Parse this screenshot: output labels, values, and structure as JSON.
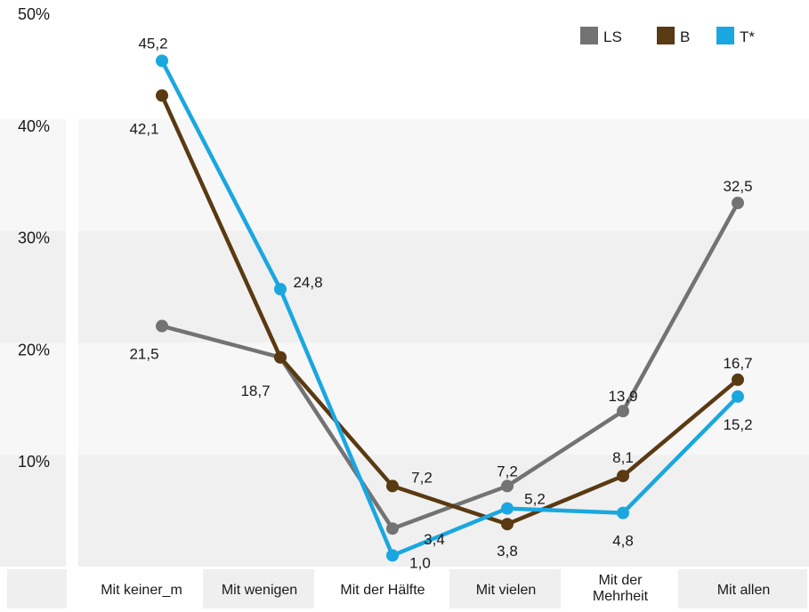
{
  "chart_data": {
    "type": "line",
    "categories": [
      [
        "Mit keiner_m"
      ],
      [
        "Mit wenigen"
      ],
      [
        "Mit der Hälfte"
      ],
      [
        "Mit vielen"
      ],
      [
        "Mit der",
        "Mehrheit"
      ],
      [
        "Mit allen"
      ]
    ],
    "ylim": [
      0,
      50
    ],
    "yticks": [
      10,
      20,
      30,
      40,
      50
    ],
    "ytick_labels": [
      "10%",
      "20%",
      "30%",
      "40%",
      "50%"
    ],
    "grid": "alternating horizontal bands",
    "legend_position": "top-right",
    "series": [
      {
        "name": "LS",
        "color": "#737373",
        "values": [
          21.5,
          18.7,
          3.4,
          7.2,
          13.9,
          32.5
        ],
        "labels": [
          "21,5",
          "18,7",
          "3,4",
          "7,2",
          "13,9",
          "32,5"
        ]
      },
      {
        "name": "B",
        "color": "#5a3a12",
        "values": [
          42.1,
          18.7,
          7.2,
          3.8,
          8.1,
          16.7
        ],
        "labels": [
          "42,1",
          "",
          "7,2",
          "3,8",
          "8,1",
          "16,7"
        ]
      },
      {
        "name": "T*",
        "color": "#1aa7e0",
        "values": [
          45.2,
          24.8,
          1.0,
          5.2,
          4.8,
          15.2
        ],
        "labels": [
          "45,2",
          "24,8",
          "1,0",
          "5,2",
          "4,8",
          "15,2"
        ]
      }
    ]
  }
}
